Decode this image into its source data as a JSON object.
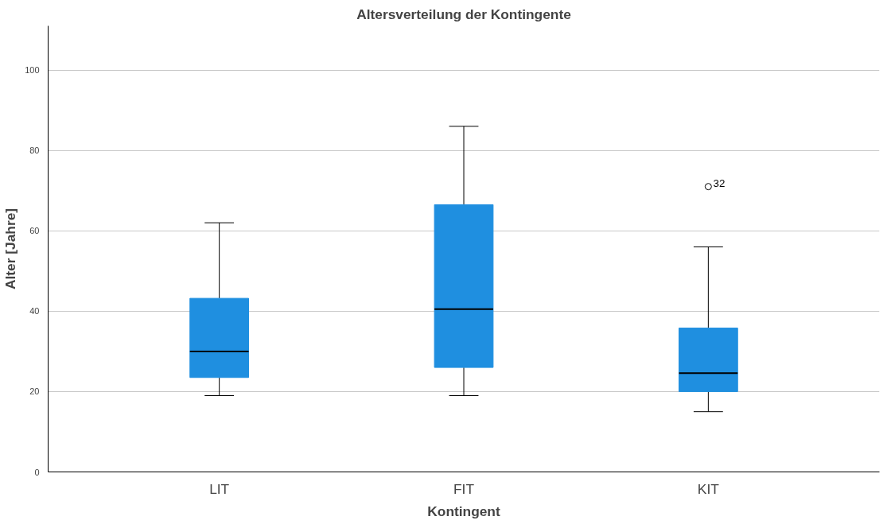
{
  "chart_data": {
    "type": "box",
    "title": "Altersverteilung der Kontingente",
    "xlabel": "Kontingent",
    "ylabel": "Alter [Jahre]",
    "categories": [
      "LIT",
      "FIT",
      "KIT"
    ],
    "color": "#1f8fe0",
    "boxes": [
      {
        "low": 19,
        "q1": 23.5,
        "median": 30,
        "q3": 43.2,
        "high": 62
      },
      {
        "low": 19,
        "q1": 26,
        "median": 40.5,
        "q3": 66.5,
        "high": 86
      },
      {
        "low": 15,
        "q1": 20,
        "median": 24.6,
        "q3": 35.8,
        "high": 56,
        "outliers": [
          71
        ]
      }
    ],
    "annotations": [
      "32"
    ],
    "ylim": [
      0,
      111
    ],
    "yticks": [
      0,
      20,
      40,
      60,
      80,
      100
    ],
    "grid": "y"
  }
}
